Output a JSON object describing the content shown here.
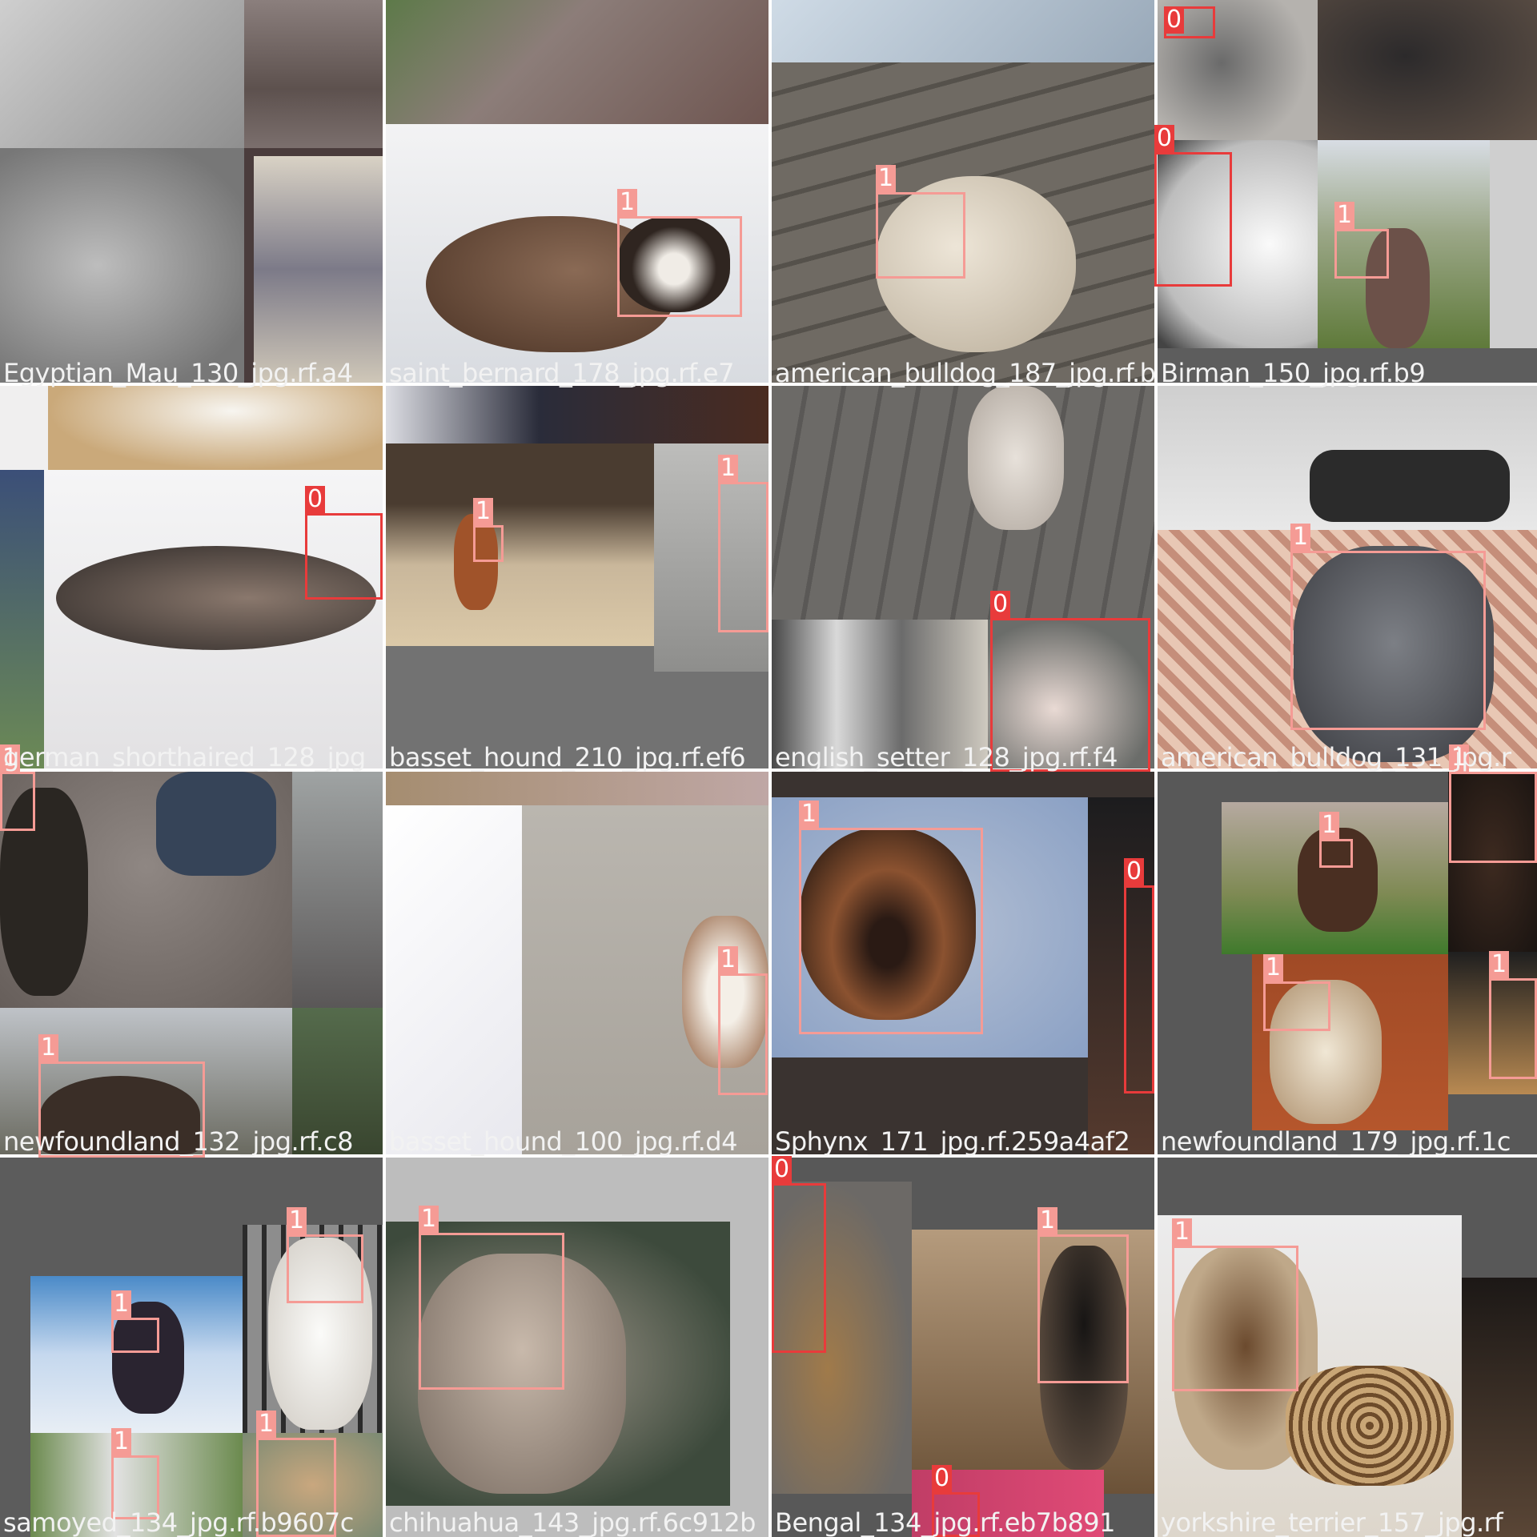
{
  "colors": {
    "class_0": "#e83b3b",
    "class_1": "#f59b95",
    "pad_gray": "#727272"
  },
  "tiles": [
    {
      "caption": "Egyptian_Mau_130_jpg.rf.a4",
      "boxes": []
    },
    {
      "caption": "saint_bernard_178_jpg.rf.e7",
      "boxes": [
        {
          "cls": "1"
        }
      ]
    },
    {
      "caption": "american_bulldog_187_jpg.rf.b9",
      "boxes": [
        {
          "cls": "1"
        }
      ]
    },
    {
      "caption": "Birman_150_jpg.rf.b9",
      "boxes": [
        {
          "cls": "0"
        },
        {
          "cls": "0"
        },
        {
          "cls": "1"
        }
      ]
    },
    {
      "caption": "german_shorthaired_128_jpg",
      "boxes": [
        {
          "cls": "0"
        },
        {
          "cls": "1"
        }
      ]
    },
    {
      "caption": "basset_hound_210_jpg.rf.ef6",
      "boxes": [
        {
          "cls": "1"
        },
        {
          "cls": "1"
        }
      ]
    },
    {
      "caption": "english_setter_128_jpg.rf.f4",
      "boxes": [
        {
          "cls": "0"
        }
      ]
    },
    {
      "caption": "american_bulldog_131_jpg.r",
      "boxes": [
        {
          "cls": "1"
        },
        {
          "cls": "1"
        }
      ]
    },
    {
      "caption": "newfoundland_132_jpg.rf.c8",
      "boxes": [
        {
          "cls": "1"
        }
      ]
    },
    {
      "caption": "basset_hound_100_jpg.rf.d4",
      "boxes": [
        {
          "cls": "1"
        }
      ]
    },
    {
      "caption": "Sphynx_171_jpg.rf.259a4af2",
      "boxes": [
        {
          "cls": "1"
        },
        {
          "cls": "0"
        }
      ]
    },
    {
      "caption": "newfoundland_179_jpg.rf.1c",
      "boxes": [
        {
          "cls": "1"
        },
        {
          "cls": "1"
        },
        {
          "cls": "1"
        }
      ]
    },
    {
      "caption": "samoyed_134_jpg.rf.b9607c",
      "boxes": [
        {
          "cls": "1"
        },
        {
          "cls": "1"
        },
        {
          "cls": "1"
        },
        {
          "cls": "1"
        }
      ]
    },
    {
      "caption": "chihuahua_143_jpg.rf.6c912b",
      "boxes": [
        {
          "cls": "1"
        }
      ]
    },
    {
      "caption": "Bengal_134_jpg.rf.eb7b891",
      "boxes": [
        {
          "cls": "0"
        },
        {
          "cls": "1"
        },
        {
          "cls": "0"
        }
      ]
    },
    {
      "caption": "yorkshire_terrier_157_jpg.rf",
      "boxes": [
        {
          "cls": "1"
        }
      ]
    }
  ]
}
